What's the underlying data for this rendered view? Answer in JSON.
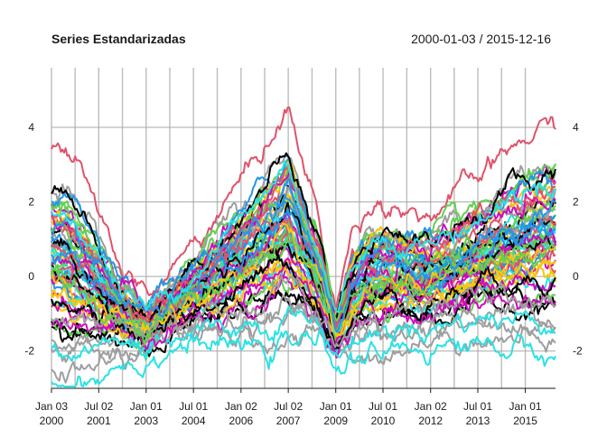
{
  "chart_data": {
    "type": "line",
    "title": "Series Estandarizadas",
    "date_range": "2000-01-03 / 2015-12-16",
    "xlim": [
      "2000-01-03",
      "2015-12-16"
    ],
    "ylim": [
      -3,
      5.6
    ],
    "y_ticks": [
      -2,
      0,
      2,
      4
    ],
    "y_tick_labels": [
      "-2",
      "0",
      "2",
      "4"
    ],
    "x_ticks": [
      {
        "date": "2000-01-03",
        "line1": "Jan 03",
        "line2": "2000"
      },
      {
        "date": "2001-07-02",
        "line1": "Jul 02",
        "line2": "2001"
      },
      {
        "date": "2003-01-01",
        "line1": "Jan 01",
        "line2": "2003"
      },
      {
        "date": "2004-07-01",
        "line1": "Jul 01",
        "line2": "2004"
      },
      {
        "date": "2006-01-02",
        "line1": "Jan 02",
        "line2": "2006"
      },
      {
        "date": "2007-07-02",
        "line1": "Jul 02",
        "line2": "2007"
      },
      {
        "date": "2009-01-01",
        "line1": "Jan 01",
        "line2": "2009"
      },
      {
        "date": "2010-07-01",
        "line1": "Jul 01",
        "line2": "2010"
      },
      {
        "date": "2012-01-02",
        "line1": "Jan 02",
        "line2": "2012"
      },
      {
        "date": "2013-07-01",
        "line1": "Jul 01",
        "line2": "2013"
      },
      {
        "date": "2015-01-01",
        "line1": "Jan 01",
        "line2": "2015"
      }
    ],
    "grid": true,
    "legend": "none",
    "palette": [
      "#000000",
      "#DF536B",
      "#61D04F",
      "#2297E6",
      "#28E2E5",
      "#CD0BBC",
      "#F5C710",
      "#9E9E9E"
    ],
    "series_template": {
      "dates": [
        "2000-01-03",
        "2000-07-03",
        "2001-01-02",
        "2001-07-02",
        "2002-01-02",
        "2002-07-01",
        "2003-01-01",
        "2003-07-01",
        "2004-01-01",
        "2004-07-01",
        "2005-01-03",
        "2005-07-01",
        "2006-01-02",
        "2006-07-03",
        "2007-01-02",
        "2007-07-02",
        "2008-01-02",
        "2008-07-01",
        "2009-01-01",
        "2009-07-01",
        "2010-01-01",
        "2010-07-01",
        "2011-01-03",
        "2011-07-01",
        "2012-01-02",
        "2012-07-02",
        "2013-01-01",
        "2013-07-01",
        "2014-01-01",
        "2014-07-01",
        "2015-01-01",
        "2015-07-01",
        "2015-12-16"
      ],
      "mean_path": [
        0.3,
        0.15,
        -0.05,
        -0.45,
        -0.85,
        -1.1,
        -1.35,
        -1.05,
        -0.7,
        -0.45,
        -0.2,
        0.05,
        0.3,
        0.6,
        0.95,
        1.4,
        0.6,
        -0.2,
        -1.55,
        -0.6,
        -0.15,
        -0.05,
        0.05,
        0.0,
        -0.05,
        0.1,
        0.25,
        0.4,
        0.55,
        0.7,
        0.85,
        0.95,
        1.0
      ],
      "spread_path": [
        1.3,
        1.3,
        1.1,
        0.9,
        0.6,
        0.45,
        0.35,
        0.35,
        0.45,
        0.55,
        0.7,
        0.85,
        0.95,
        1.1,
        1.25,
        1.35,
        1.0,
        0.7,
        0.3,
        0.7,
        0.85,
        0.9,
        0.85,
        0.8,
        0.75,
        0.8,
        0.85,
        0.9,
        1.0,
        1.1,
        1.2,
        1.25,
        1.3
      ]
    }
  }
}
